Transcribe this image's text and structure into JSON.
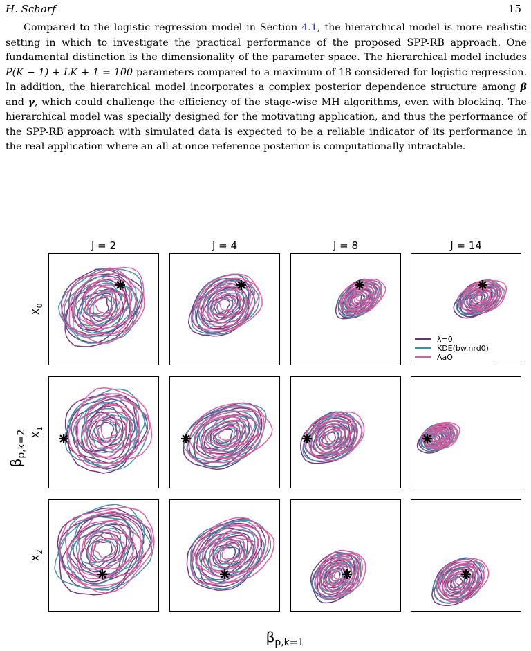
{
  "header": {
    "author": "H. Scharf",
    "page_number": "15"
  },
  "paragraph": {
    "s1a": "Compared to the logistic regression model in Section ",
    "s1ref": "4.1",
    "s1b": ", the hierarchical model is more realistic setting in which to investigate the practical performance of the proposed SPP-RB approach. One fundamental distinction is the dimensionality of the parameter space. The hierarchical model includes ",
    "eq": "P(K − 1) + LK + 1 = 100",
    "s2": " parameters compared to a maximum of 18 considered for logistic regression. In addition, the hierarchical model incorporates a complex posterior dependence structure among ",
    "beta": "β",
    "and": " and ",
    "gamma": "γ",
    "s3": ", which could challenge the efficiency of the stage-wise MH algorithms, even with blocking. The hierarchical model was specially designed for the motivating application, and thus the performance of the SPP-RB approach with simulated data is expected to be a reliable indicator of its performance in the real application where an all-at-once reference posterior is computationally intractable."
  },
  "figure": {
    "column_labels": [
      "J = 2",
      "J = 4",
      "J = 8",
      "J = 14"
    ],
    "row_labels": [
      "X",
      "X",
      "X"
    ],
    "row_subscripts": [
      "0",
      "1",
      "2"
    ],
    "y_axis_label": "β",
    "y_axis_sub": "p,k=2",
    "x_axis_label": "β",
    "x_axis_sub": "p,k=1",
    "legend": [
      {
        "label": "λ=0",
        "color": "#6b2d7c"
      },
      {
        "label": "KDE(bw.nrd0)",
        "color": "#3a8ea8"
      },
      {
        "label": "AaO",
        "color": "#e8559a"
      }
    ]
  },
  "chart_data": {
    "type": "contour",
    "rows": [
      "X0",
      "X1",
      "X2"
    ],
    "columns": [
      "J = 2",
      "J = 4",
      "J = 8",
      "J = 14"
    ],
    "series": [
      "λ=0",
      "KDE(bw.nrd0)",
      "AaO"
    ],
    "marker": "true value shown as asterisk in every panel"
  }
}
